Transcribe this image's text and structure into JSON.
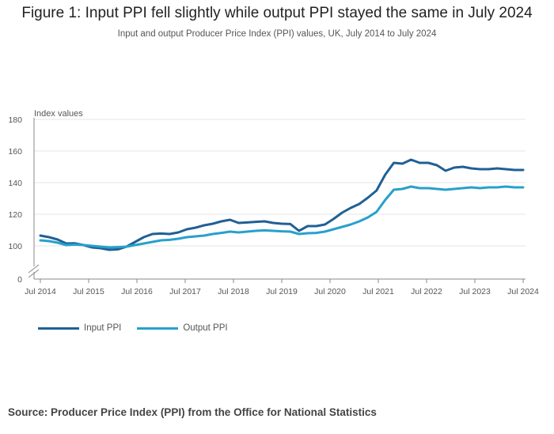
{
  "chart_data": {
    "type": "line",
    "title": "Figure 1: Input PPI fell slightly while output PPI stayed the same in July 2024",
    "subtitle": "Input and output Producer Price Index (PPI) values, UK, July 2014 to July 2024",
    "ylabel": "Index values",
    "xlabel": "",
    "ylim": [
      0,
      180
    ],
    "yticks": [
      0,
      100,
      120,
      140,
      160,
      180
    ],
    "axis_break": true,
    "grid": true,
    "legend_position": "bottom-left",
    "x_tick_labels": [
      "Jul 2014",
      "Jul 2015",
      "Jul 2016",
      "Jul 2017",
      "Jul 2018",
      "Jul 2019",
      "Jul 2020",
      "Jul 2021",
      "Jul 2022",
      "Jul 2023",
      "Jul 2024"
    ],
    "x_start": "2014-07",
    "x_end": "2024-07",
    "series": [
      {
        "name": "Input PPI",
        "color": "#206095",
        "points": [
          [
            2014.5,
            106.5
          ],
          [
            2014.75,
            105.5
          ],
          [
            2015.0,
            104.0
          ],
          [
            2015.25,
            101.5
          ],
          [
            2015.5,
            101.6
          ],
          [
            2015.75,
            100.5
          ],
          [
            2016.0,
            99.0
          ],
          [
            2016.25,
            98.5
          ],
          [
            2016.5,
            97.5
          ],
          [
            2016.75,
            97.8
          ],
          [
            2017.0,
            99.5
          ],
          [
            2017.25,
            102.5
          ],
          [
            2017.5,
            105.5
          ],
          [
            2017.75,
            107.5
          ],
          [
            2018.0,
            107.8
          ],
          [
            2018.25,
            107.5
          ],
          [
            2018.5,
            108.5
          ],
          [
            2018.75,
            110.5
          ],
          [
            2019.0,
            111.5
          ],
          [
            2019.25,
            113.0
          ],
          [
            2019.5,
            114.0
          ],
          [
            2019.75,
            115.5
          ],
          [
            2020.0,
            116.5
          ],
          [
            2020.25,
            114.5
          ],
          [
            2020.5,
            114.8
          ],
          [
            2020.75,
            115.2
          ],
          [
            2021.0,
            115.5
          ],
          [
            2021.25,
            114.5
          ],
          [
            2021.5,
            114.0
          ],
          [
            2021.75,
            113.8
          ],
          [
            2022.0,
            109.5
          ],
          [
            2022.25,
            112.5
          ],
          [
            2022.5,
            112.5
          ],
          [
            2022.75,
            113.5
          ],
          [
            2023.0,
            117.0
          ],
          [
            2023.25,
            121.0
          ],
          [
            2023.5,
            124.0
          ],
          [
            2023.75,
            126.5
          ],
          [
            2024.0,
            130.5
          ],
          [
            2024.25,
            135.0
          ],
          [
            2024.5,
            145.0
          ],
          [
            2024.75,
            152.5
          ],
          [
            2025.0,
            152.0
          ],
          [
            2025.25,
            154.5
          ],
          [
            2025.5,
            152.5
          ],
          [
            2025.75,
            152.5
          ],
          [
            2026.0,
            151.0
          ],
          [
            2026.25,
            147.5
          ],
          [
            2026.5,
            149.5
          ],
          [
            2026.75,
            150.0
          ],
          [
            2027.0,
            149.0
          ],
          [
            2027.25,
            148.5
          ],
          [
            2027.5,
            148.5
          ],
          [
            2027.75,
            149.0
          ],
          [
            2028.0,
            148.5
          ],
          [
            2028.25,
            148.0
          ],
          [
            2028.5,
            148.0
          ]
        ]
      },
      {
        "name": "Output PPI",
        "color": "#27a0cc",
        "points": [
          [
            2014.5,
            103.5
          ],
          [
            2014.75,
            103.0
          ],
          [
            2015.0,
            102.0
          ],
          [
            2015.25,
            100.5
          ],
          [
            2015.5,
            100.8
          ],
          [
            2015.75,
            100.5
          ],
          [
            2016.0,
            100.0
          ],
          [
            2016.25,
            99.5
          ],
          [
            2016.5,
            99.0
          ],
          [
            2016.75,
            99.2
          ],
          [
            2017.0,
            99.5
          ],
          [
            2017.25,
            100.5
          ],
          [
            2017.5,
            101.5
          ],
          [
            2017.75,
            102.5
          ],
          [
            2018.0,
            103.5
          ],
          [
            2018.25,
            103.8
          ],
          [
            2018.5,
            104.5
          ],
          [
            2018.75,
            105.5
          ],
          [
            2019.0,
            106.0
          ],
          [
            2019.25,
            106.5
          ],
          [
            2019.5,
            107.5
          ],
          [
            2019.75,
            108.2
          ],
          [
            2020.0,
            109.0
          ],
          [
            2020.25,
            108.5
          ],
          [
            2020.5,
            109.0
          ],
          [
            2020.75,
            109.5
          ],
          [
            2021.0,
            109.8
          ],
          [
            2021.25,
            109.5
          ],
          [
            2021.5,
            109.2
          ],
          [
            2021.75,
            109.0
          ],
          [
            2022.0,
            107.5
          ],
          [
            2022.25,
            108.0
          ],
          [
            2022.5,
            108.2
          ],
          [
            2022.75,
            109.0
          ],
          [
            2023.0,
            110.5
          ],
          [
            2023.25,
            112.0
          ],
          [
            2023.5,
            113.5
          ],
          [
            2023.75,
            115.5
          ],
          [
            2024.0,
            118.0
          ],
          [
            2024.25,
            121.5
          ],
          [
            2024.5,
            129.0
          ],
          [
            2024.75,
            135.5
          ],
          [
            2025.0,
            136.0
          ],
          [
            2025.25,
            137.5
          ],
          [
            2025.5,
            136.5
          ],
          [
            2025.75,
            136.5
          ],
          [
            2026.0,
            136.0
          ],
          [
            2026.25,
            135.5
          ],
          [
            2026.5,
            136.0
          ],
          [
            2026.75,
            136.5
          ],
          [
            2027.0,
            137.0
          ],
          [
            2027.25,
            136.5
          ],
          [
            2027.5,
            137.0
          ],
          [
            2027.75,
            137.0
          ],
          [
            2028.0,
            137.5
          ],
          [
            2028.25,
            137.0
          ],
          [
            2028.5,
            137.0
          ]
        ]
      }
    ]
  },
  "source": "Source: Producer Price Index (PPI) from the Office for National Statistics"
}
